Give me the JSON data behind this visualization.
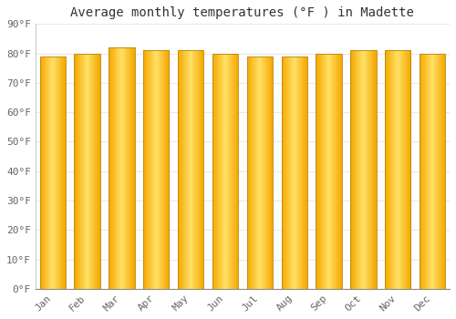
{
  "title": "Average monthly temperatures (°F ) in Madette",
  "months": [
    "Jan",
    "Feb",
    "Mar",
    "Apr",
    "May",
    "Jun",
    "Jul",
    "Aug",
    "Sep",
    "Oct",
    "Nov",
    "Dec"
  ],
  "values": [
    79,
    80,
    82,
    81,
    81,
    80,
    79,
    79,
    80,
    81,
    81,
    80
  ],
  "ylim": [
    0,
    90
  ],
  "yticks": [
    0,
    10,
    20,
    30,
    40,
    50,
    60,
    70,
    80,
    90
  ],
  "ytick_labels": [
    "0°F",
    "10°F",
    "20°F",
    "30°F",
    "40°F",
    "50°F",
    "60°F",
    "70°F",
    "80°F",
    "90°F"
  ],
  "bar_color_center": "#FFE066",
  "bar_color_edge": "#F5A800",
  "bar_outline_color": "#B8860B",
  "background_color": "#FFFFFF",
  "grid_color": "#E8E8E8",
  "title_fontsize": 10,
  "tick_fontsize": 8,
  "bar_width": 0.75
}
